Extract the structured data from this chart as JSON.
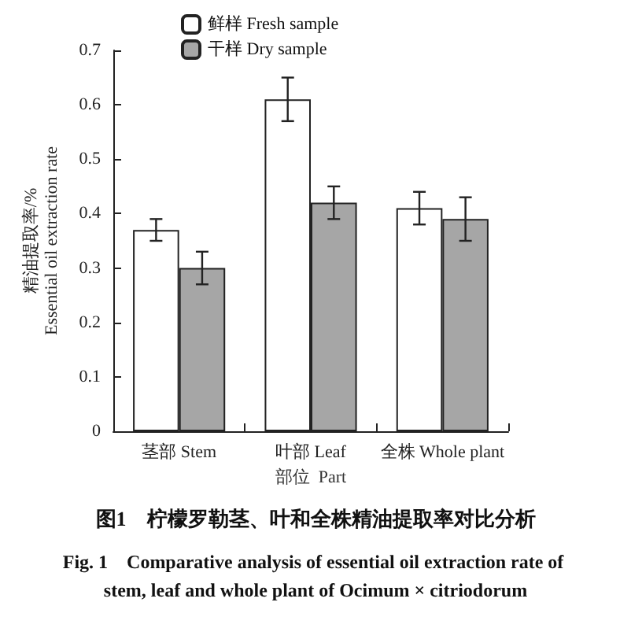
{
  "chart_data": {
    "type": "bar",
    "title": "图1　柠檬罗勒茎、叶和全株精油提取率对比分析",
    "subtitle": "Fig. 1　Comparative analysis of essential oil extraction rate of stem, leaf and whole plant of Ocimum × citriodorum",
    "xlabel": "部位  Part",
    "ylabel": "精油提取率/%\nEssential oil extraction rate",
    "categories": [
      "茎部 Stem",
      "叶部 Leaf",
      "全株 Whole plant"
    ],
    "series": [
      {
        "name": "鲜样 Fresh sample",
        "color": "#ffffff",
        "values": [
          0.37,
          0.61,
          0.41
        ],
        "errors": [
          0.02,
          0.04,
          0.03
        ]
      },
      {
        "name": "干样 Dry sample",
        "color": "#a6a6a6",
        "values": [
          0.3,
          0.42,
          0.39
        ],
        "errors": [
          0.03,
          0.03,
          0.04
        ]
      }
    ],
    "ylim": [
      0,
      0.7
    ],
    "yticks": [
      0,
      0.1,
      0.2,
      0.3,
      0.4,
      0.5,
      0.6,
      0.7
    ],
    "grid": false,
    "legend": "top left"
  }
}
